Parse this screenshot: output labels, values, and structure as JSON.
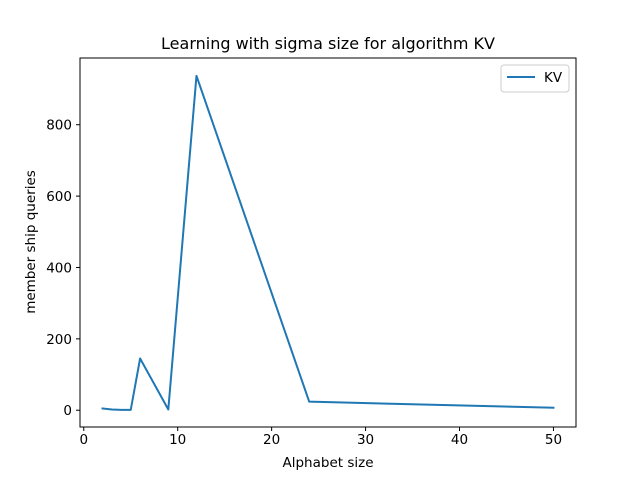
{
  "chart_data": {
    "type": "line",
    "title": "Learning with sigma size for algorithm KV",
    "xlabel": "Alphabet size",
    "ylabel": "member ship queries",
    "xlim": [
      -0.4,
      52.4
    ],
    "ylim": [
      -47,
      987
    ],
    "xticks": [
      0,
      10,
      20,
      30,
      40,
      50
    ],
    "yticks": [
      0,
      200,
      400,
      600,
      800
    ],
    "grid": false,
    "legend_position": "top-right",
    "series": [
      {
        "name": "KV",
        "color": "#1f77b4",
        "x": [
          2,
          3,
          4,
          5,
          6,
          9,
          12,
          24,
          50
        ],
        "y": [
          5,
          2,
          1,
          1,
          145,
          2,
          937,
          24,
          7
        ]
      }
    ]
  }
}
